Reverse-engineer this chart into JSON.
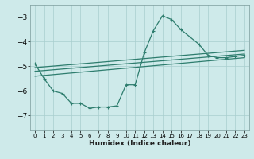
{
  "xlabel": "Humidex (Indice chaleur)",
  "background_color": "#ceeaea",
  "line_color": "#2e7d6e",
  "grid_color": "#a8cece",
  "xlim": [
    -0.5,
    23.5
  ],
  "ylim": [
    -7.6,
    -2.5
  ],
  "yticks": [
    -7,
    -6,
    -5,
    -4,
    -3
  ],
  "xticks": [
    0,
    1,
    2,
    3,
    4,
    5,
    6,
    7,
    8,
    9,
    10,
    11,
    12,
    13,
    14,
    15,
    16,
    17,
    18,
    19,
    20,
    21,
    22,
    23
  ],
  "main_x": [
    0,
    1,
    2,
    3,
    4,
    5,
    6,
    7,
    8,
    9,
    10,
    11,
    12,
    13,
    14,
    15,
    16,
    17,
    18,
    19,
    20,
    21,
    22,
    23
  ],
  "main_y": [
    -4.9,
    -5.5,
    -6.0,
    -6.1,
    -6.5,
    -6.5,
    -6.7,
    -6.65,
    -6.65,
    -6.6,
    -5.75,
    -5.75,
    -4.45,
    -3.55,
    -2.95,
    -3.1,
    -3.5,
    -3.8,
    -4.1,
    -4.55,
    -4.65,
    -4.65,
    -4.6,
    -4.55
  ],
  "line1_x": [
    0,
    23
  ],
  "line1_y": [
    -5.05,
    -4.35
  ],
  "line2_x": [
    0,
    23
  ],
  "line2_y": [
    -5.2,
    -4.5
  ],
  "line3_x": [
    0,
    23
  ],
  "line3_y": [
    -5.4,
    -4.65
  ]
}
